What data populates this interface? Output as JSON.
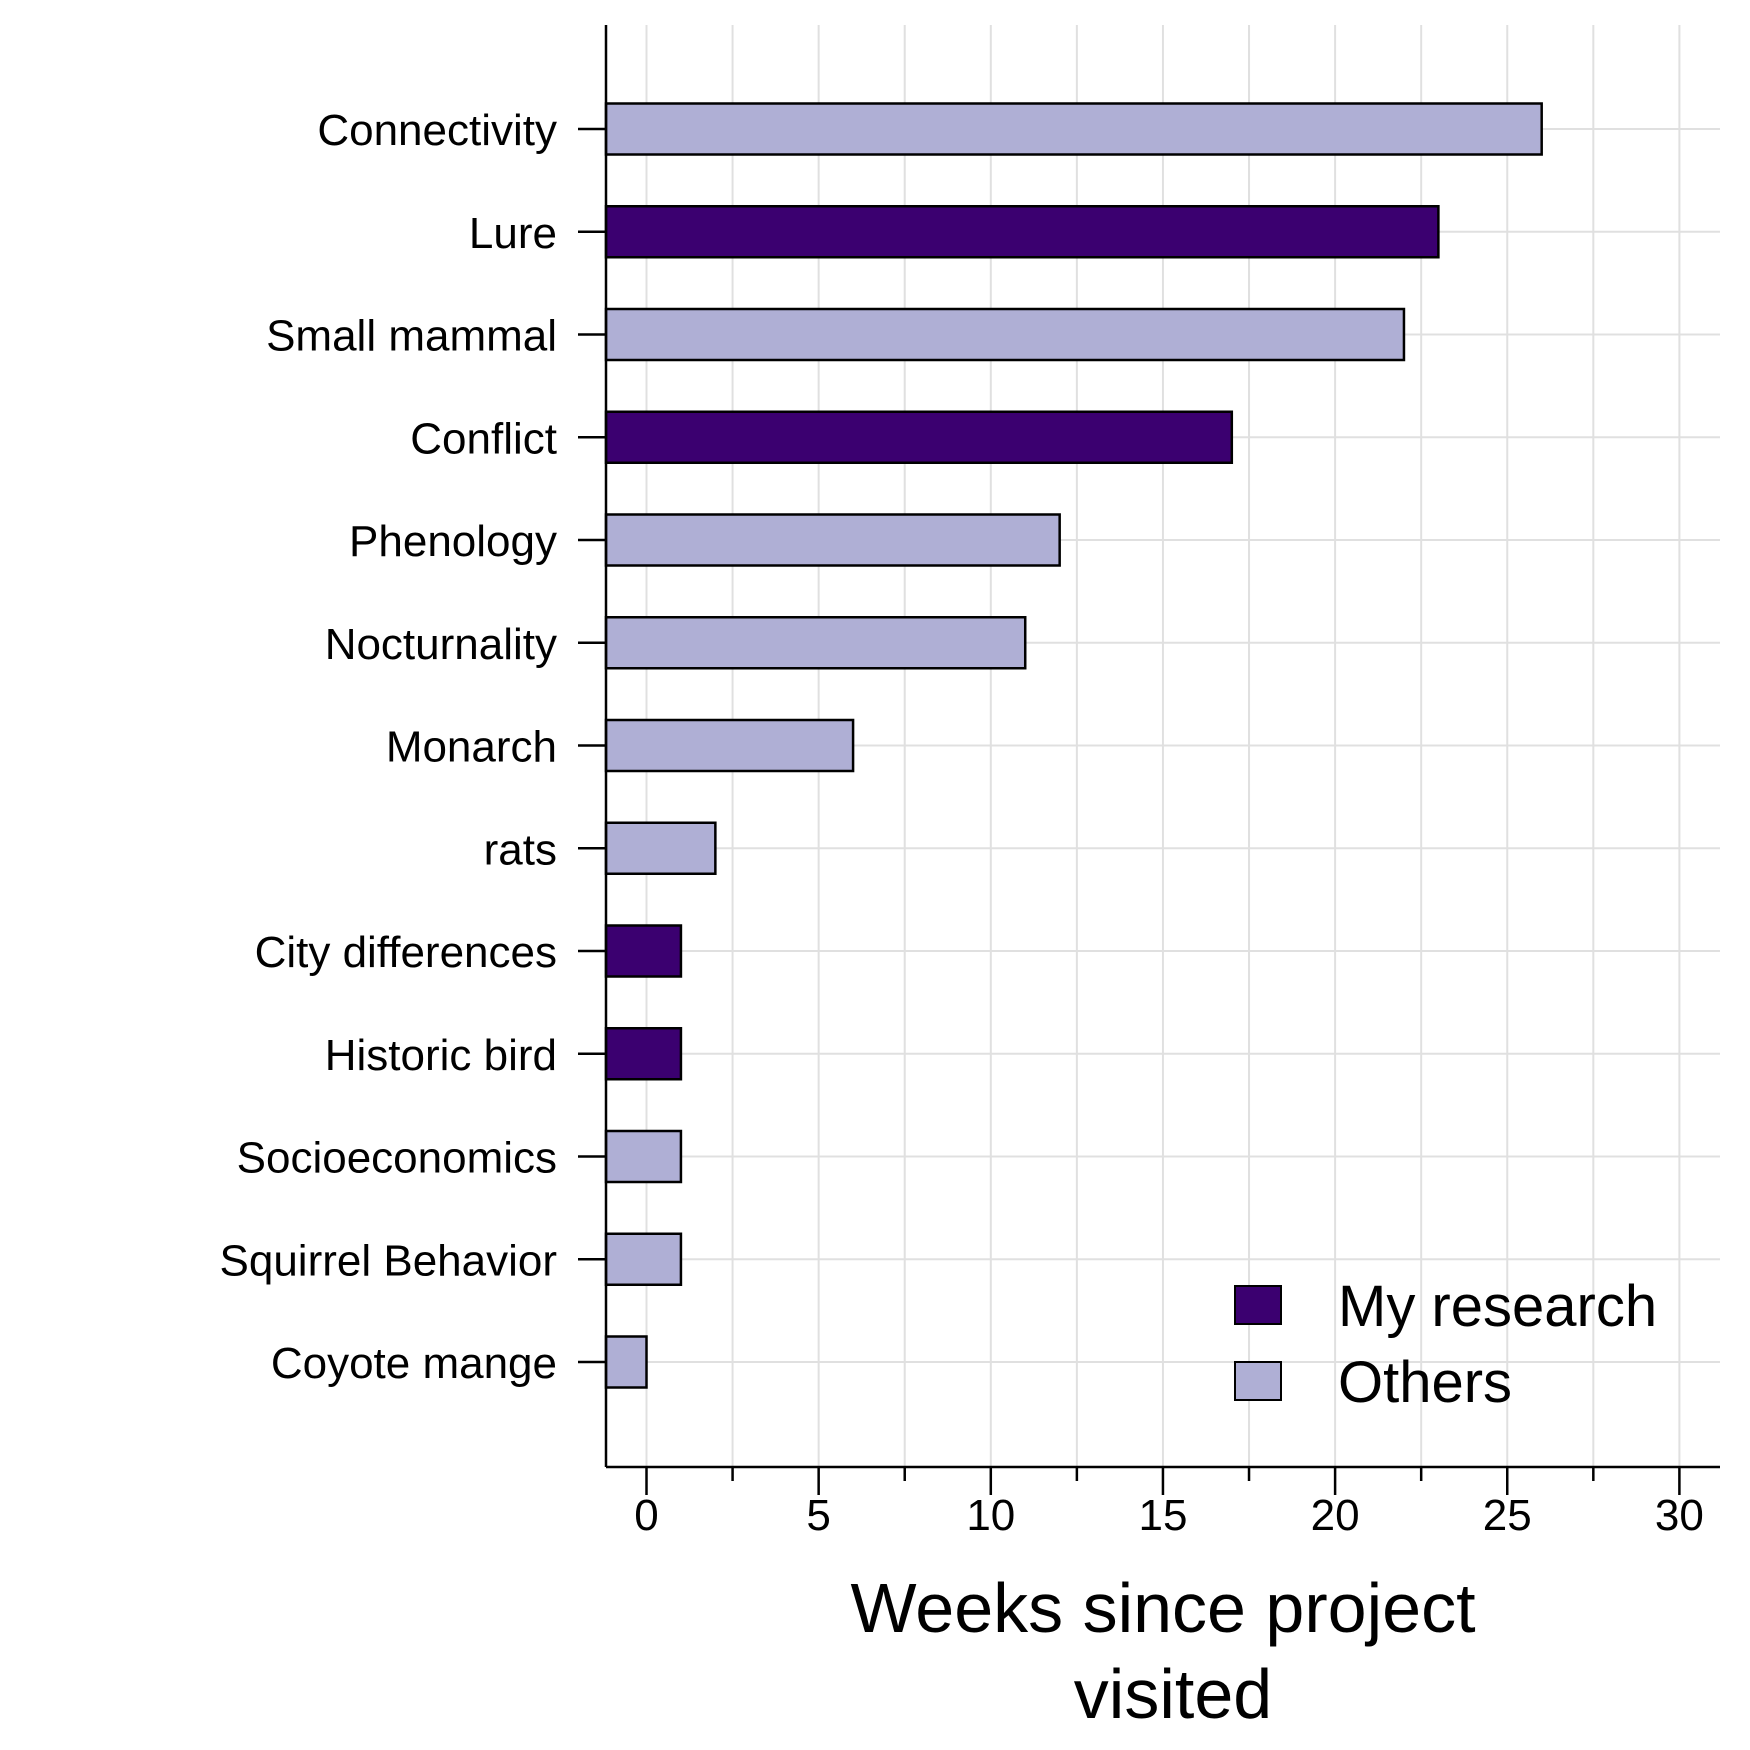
{
  "chart_data": {
    "type": "bar",
    "orientation": "horizontal",
    "categories": [
      "Connectivity",
      "Lure",
      "Small mammal",
      "Conflict",
      "Phenology",
      "Nocturnality",
      "Monarch",
      "rats",
      "City differences",
      "Historic bird",
      "Socioeconomics",
      "Squirrel Behavior",
      "Coyote mange"
    ],
    "values": [
      26,
      23,
      22,
      17,
      12,
      11,
      6,
      2,
      1,
      1,
      1,
      1,
      0
    ],
    "groups": [
      "Others",
      "My research",
      "Others",
      "My research",
      "Others",
      "Others",
      "Others",
      "Others",
      "My research",
      "My research",
      "Others",
      "Others",
      "Others"
    ],
    "legend": [
      {
        "name": "My research",
        "color": "#3b0070"
      },
      {
        "name": "Others",
        "color": "#afafd5"
      }
    ],
    "legend_position": "bottom-right",
    "xlabel_lines": [
      "Weeks since project",
      "visited"
    ],
    "xticks": [
      0,
      5,
      10,
      15,
      20,
      25,
      30
    ],
    "xlim": [
      -1.2,
      31.2
    ],
    "grid": true
  }
}
